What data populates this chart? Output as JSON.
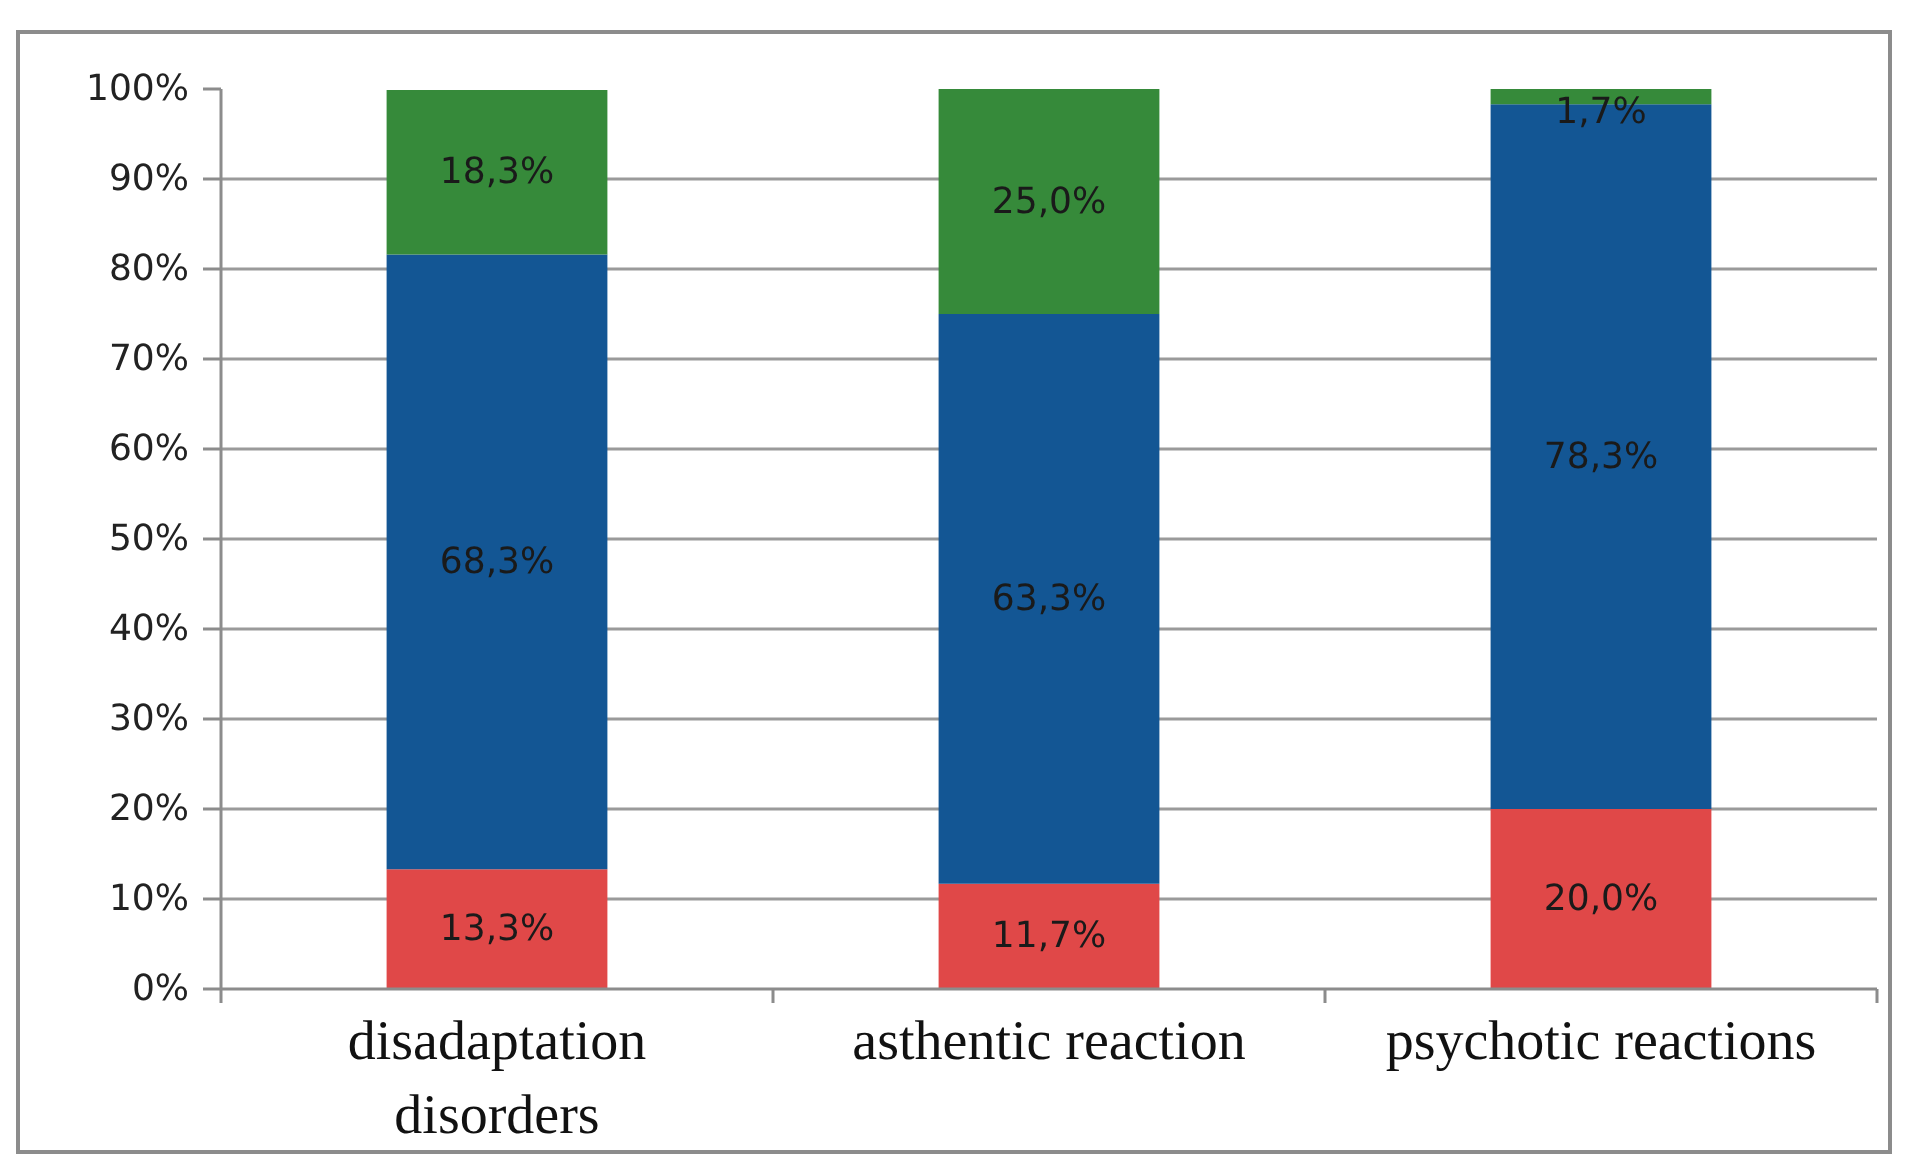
{
  "chart_data": {
    "type": "bar",
    "stacked": true,
    "categories": [
      "disadaptation disorders",
      "asthentic reaction",
      "psychotic reactions"
    ],
    "series": [
      {
        "color": "#e04848",
        "values": [
          13.3,
          11.7,
          20.0
        ],
        "value_labels": [
          "13,3%",
          "11,7%",
          "20,0%"
        ]
      },
      {
        "color": "#135694",
        "values": [
          68.3,
          63.3,
          78.3
        ],
        "value_labels": [
          "68,3%",
          "63,3%",
          "78,3%"
        ]
      },
      {
        "color": "#368a3a",
        "values": [
          18.3,
          25.0,
          1.7
        ],
        "value_labels": [
          "18,3%",
          "25,0%",
          "1,7%"
        ]
      }
    ],
    "ylim": [
      0,
      100
    ],
    "yticks": [
      {
        "value": 0,
        "label": "0%"
      },
      {
        "value": 10,
        "label": "10%"
      },
      {
        "value": 20,
        "label": "20%"
      },
      {
        "value": 30,
        "label": "30%"
      },
      {
        "value": 40,
        "label": "40%"
      },
      {
        "value": 50,
        "label": "50%"
      },
      {
        "value": 60,
        "label": "60%"
      },
      {
        "value": 70,
        "label": "70%"
      },
      {
        "value": 80,
        "label": "80%"
      },
      {
        "value": 90,
        "label": "90%"
      },
      {
        "value": 100,
        "label": "100%"
      }
    ],
    "grid": "y"
  }
}
